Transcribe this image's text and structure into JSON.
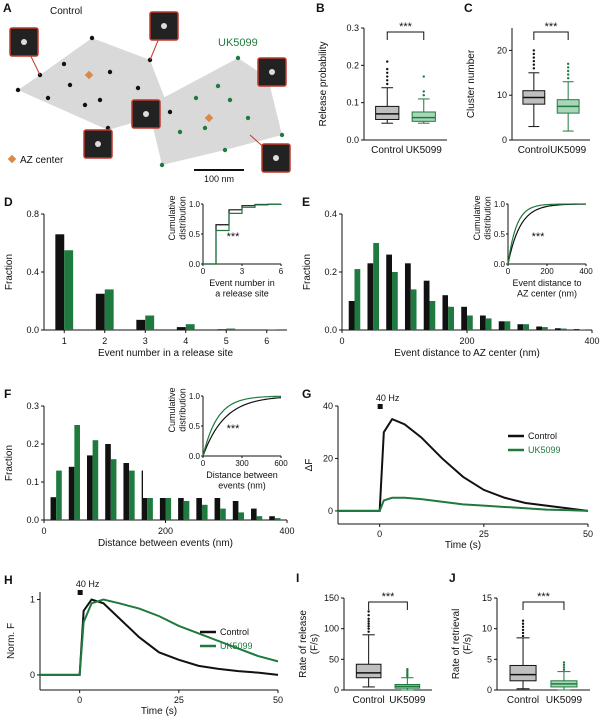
{
  "colors": {
    "control": "#111111",
    "uk": "#1f7a3f",
    "box_fill_control": "#bfbfbf",
    "box_fill_uk": "#a9d6b8",
    "hull": "#d9d9d9",
    "az": "#d98a4b",
    "frame": "#c0392b"
  },
  "panel_A": {
    "label": "A",
    "control_label": "Control",
    "uk_label": "UK5099",
    "az_legend": "AZ center",
    "scale_label": "100 nm"
  },
  "chart_data": [
    {
      "id": "B",
      "type": "box",
      "label": "B",
      "ylabel": "Release probability",
      "categories": [
        "Control",
        "UK5099"
      ],
      "ylim": [
        0,
        0.3
      ],
      "yticks": [
        0,
        0.1,
        0.2,
        0.3
      ],
      "yticklabels": [
        "0.0",
        "0.1",
        "0.2",
        "0.3"
      ],
      "boxes": [
        {
          "q1": 0.055,
          "median": 0.07,
          "q3": 0.09,
          "wl": 0.045,
          "wh": 0.14
        },
        {
          "q1": 0.05,
          "median": 0.06,
          "q3": 0.075,
          "wl": 0.045,
          "wh": 0.11
        }
      ],
      "outliers": [
        [
          0.15,
          0.16,
          0.17,
          0.18,
          0.19,
          0.21
        ],
        [
          0.12,
          0.13,
          0.17
        ]
      ],
      "significance": "***"
    },
    {
      "id": "C",
      "type": "box",
      "label": "C",
      "ylabel": "Cluster number",
      "categories": [
        "Control",
        "UK5099"
      ],
      "ylim": [
        0,
        25
      ],
      "yticks": [
        0,
        10,
        20
      ],
      "yticklabels": [
        "0",
        "10",
        "20"
      ],
      "boxes": [
        {
          "q1": 8,
          "median": 9.5,
          "q3": 11,
          "wl": 3,
          "wh": 15
        },
        {
          "q1": 6,
          "median": 7.5,
          "q3": 9,
          "wl": 2,
          "wh": 13
        }
      ],
      "outliers": [
        [
          16,
          16.8,
          17.6,
          18.4,
          19.2,
          20
        ],
        [
          13.8,
          14.6,
          15.4,
          16.2,
          17
        ]
      ],
      "significance": "***"
    },
    {
      "id": "D",
      "type": "bar",
      "label": "D",
      "xlabel": "Event number in a release site",
      "ylabel": "Fraction",
      "ylim": [
        0,
        0.8
      ],
      "yticks": [
        0,
        0.4,
        0.8
      ],
      "yticklabels": [
        "0.0",
        "0.4",
        "0.8"
      ],
      "categories": [
        "1",
        "2",
        "3",
        "4",
        "5",
        "6"
      ],
      "series": [
        {
          "values": [
            0.66,
            0.25,
            0.07,
            0.02,
            0.005,
            0.003
          ]
        },
        {
          "values": [
            0.55,
            0.28,
            0.1,
            0.04,
            0.01,
            0.004
          ]
        }
      ],
      "inset": {
        "xlabel": "Event number in\na release site",
        "ylabel": "Cumulative\ndistribution",
        "xlim": [
          0,
          6
        ],
        "ylim": [
          0,
          1
        ],
        "xticks": [
          0,
          3,
          6
        ],
        "yticks": [
          0,
          0.5,
          1
        ],
        "yticklabels": [
          "0.0",
          "0.5",
          "1.0"
        ],
        "significance": "***",
        "kind": "step"
      }
    },
    {
      "id": "E",
      "type": "bar",
      "label": "E",
      "xlabel": "Event distance to AZ center (nm)",
      "ylabel": "Fraction",
      "xlim": [
        0,
        400
      ],
      "xticks": [
        0,
        200,
        400
      ],
      "ylim": [
        0,
        0.4
      ],
      "yticks": [
        0,
        0.2,
        0.4
      ],
      "yticklabels": [
        "0.0",
        "0.2",
        "0.4"
      ],
      "centers": [
        20,
        50,
        80,
        110,
        140,
        170,
        200,
        230,
        260,
        290,
        320,
        350,
        380
      ],
      "series": [
        {
          "values": [
            0.1,
            0.23,
            0.26,
            0.23,
            0.17,
            0.12,
            0.08,
            0.05,
            0.03,
            0.02,
            0.012,
            0.006,
            0.003
          ]
        },
        {
          "values": [
            0.21,
            0.3,
            0.2,
            0.14,
            0.1,
            0.08,
            0.05,
            0.04,
            0.03,
            0.02,
            0.01,
            0.005,
            0.002
          ]
        }
      ],
      "inset": {
        "xlabel": "Event distance to\nAZ center (nm)",
        "ylabel": "Cumulative\ndistribution",
        "xlim": [
          0,
          400
        ],
        "ylim": [
          0,
          1
        ],
        "xticks": [
          0,
          200,
          400
        ],
        "yticks": [
          0,
          0.5,
          1
        ],
        "yticklabels": [
          "0.0",
          "0.5",
          "1.0"
        ],
        "significance": "***",
        "kind": "smooth",
        "k": [
          0.016,
          0.023
        ]
      }
    },
    {
      "id": "F",
      "type": "bar",
      "label": "F",
      "xlabel": "Distance between events (nm)",
      "ylabel": "Fraction",
      "xlim": [
        0,
        400
      ],
      "xticks": [
        0,
        200,
        400
      ],
      "ylim": [
        0,
        0.3
      ],
      "yticks": [
        0,
        0.1,
        0.2,
        0.3
      ],
      "yticklabels": [
        "0.0",
        "0.1",
        "0.2",
        "0.3"
      ],
      "centers": [
        20,
        50,
        80,
        110,
        140,
        170,
        200,
        230,
        260,
        290,
        320,
        350,
        380
      ],
      "series": [
        {
          "values": [
            0.06,
            0.14,
            0.17,
            0.2,
            0.15,
            0.13,
            0.11,
            0.09,
            0.08,
            0.06,
            0.05,
            0.03,
            0.01
          ]
        },
        {
          "values": [
            0.13,
            0.25,
            0.21,
            0.16,
            0.13,
            0.09,
            0.07,
            0.05,
            0.04,
            0.03,
            0.02,
            0.01,
            0.005
          ]
        }
      ],
      "inset": {
        "xlabel": "Distance between\nevents (nm)",
        "ylabel": "Cumulative\ndistribution",
        "xlim": [
          0,
          600
        ],
        "ylim": [
          0,
          1
        ],
        "xticks": [
          0,
          300,
          600
        ],
        "yticks": [
          0,
          0.5,
          1
        ],
        "yticklabels": [
          "0.0",
          "0.5",
          "1.0"
        ],
        "significance": "***",
        "kind": "smooth",
        "k": [
          0.006,
          0.009
        ]
      }
    },
    {
      "id": "G",
      "type": "line",
      "label": "G",
      "xlabel": "Time (s)",
      "ylabel": "ΔF",
      "xlim": [
        -10,
        50
      ],
      "xticks": [
        0,
        25,
        50
      ],
      "ylim": [
        -5,
        40
      ],
      "yticks": [
        0,
        20,
        40
      ],
      "stim_label": "40 Hz",
      "legend": [
        "Control",
        "UK5099"
      ],
      "series": [
        {
          "name": "Control",
          "x": [
            -10,
            -2,
            0,
            1,
            3,
            6,
            10,
            15,
            20,
            25,
            30,
            35,
            40,
            45,
            50
          ],
          "y": [
            0,
            0,
            0,
            30,
            35,
            33,
            28,
            20,
            13,
            8,
            5,
            3,
            2,
            1,
            0
          ]
        },
        {
          "name": "UK5099",
          "x": [
            -10,
            -2,
            0,
            1,
            3,
            6,
            10,
            15,
            20,
            25,
            30,
            35,
            40,
            45,
            50
          ],
          "y": [
            0,
            0,
            0,
            4,
            5,
            5,
            4.5,
            3.5,
            2.5,
            2,
            1.5,
            1,
            0.5,
            0.3,
            0
          ]
        }
      ]
    },
    {
      "id": "H",
      "type": "line",
      "label": "H",
      "xlabel": "Time (s)",
      "ylabel": "Norm. F",
      "xlim": [
        -10,
        50
      ],
      "xticks": [
        0,
        25,
        50
      ],
      "ylim": [
        -0.2,
        1.1
      ],
      "yticks": [
        0,
        1
      ],
      "stim_label": "40 Hz",
      "legend": [
        "Control",
        "UK5099"
      ],
      "series": [
        {
          "name": "Control",
          "x": [
            -10,
            -2,
            0,
            1,
            3,
            6,
            10,
            15,
            20,
            25,
            30,
            35,
            40,
            45,
            50
          ],
          "y": [
            0,
            0,
            0,
            0.85,
            1,
            0.95,
            0.75,
            0.5,
            0.3,
            0.2,
            0.12,
            0.08,
            0.05,
            0.03,
            0
          ]
        },
        {
          "name": "UK5099",
          "x": [
            -10,
            -2,
            0,
            1,
            3,
            6,
            10,
            15,
            20,
            25,
            30,
            35,
            40,
            45,
            50
          ],
          "y": [
            0,
            0,
            0,
            0.7,
            0.95,
            1,
            0.95,
            0.88,
            0.78,
            0.65,
            0.55,
            0.45,
            0.35,
            0.25,
            0.18
          ]
        }
      ]
    },
    {
      "id": "I",
      "type": "box",
      "label": "I",
      "ylabel": "Rate of release\n(F/s)",
      "categories": [
        "Control",
        "UK5099"
      ],
      "ylim": [
        0,
        150
      ],
      "yticks": [
        0,
        50,
        100,
        150
      ],
      "yticklabels": [
        "0",
        "50",
        "100",
        "150"
      ],
      "boxes": [
        {
          "q1": 20,
          "median": 28,
          "q3": 42,
          "wl": 5,
          "wh": 90
        },
        {
          "q1": 3,
          "median": 6,
          "q3": 9,
          "wl": 0,
          "wh": 20
        }
      ],
      "outliers": [
        [
          95,
          100,
          104,
          108,
          112,
          116,
          122,
          128
        ],
        [
          22,
          25,
          28,
          31,
          34
        ]
      ],
      "significance": "***"
    },
    {
      "id": "J",
      "type": "box",
      "label": "J",
      "ylabel": "Rate of retrieval\n(F/s)",
      "categories": [
        "Control",
        "UK5099"
      ],
      "ylim": [
        0,
        15
      ],
      "yticks": [
        0,
        5,
        10,
        15
      ],
      "yticklabels": [
        "0",
        "5",
        "10",
        "15"
      ],
      "boxes": [
        {
          "q1": 1.5,
          "median": 2.5,
          "q3": 4,
          "wl": 0.2,
          "wh": 8.5
        },
        {
          "q1": 0.5,
          "median": 1,
          "q3": 1.5,
          "wl": 0,
          "wh": 3
        }
      ],
      "outliers": [
        [
          8.8,
          9.3,
          9.8,
          10.3,
          10.8,
          11.3
        ],
        [
          3.3,
          3.7,
          4.1,
          4.5
        ]
      ],
      "significance": "***"
    }
  ]
}
